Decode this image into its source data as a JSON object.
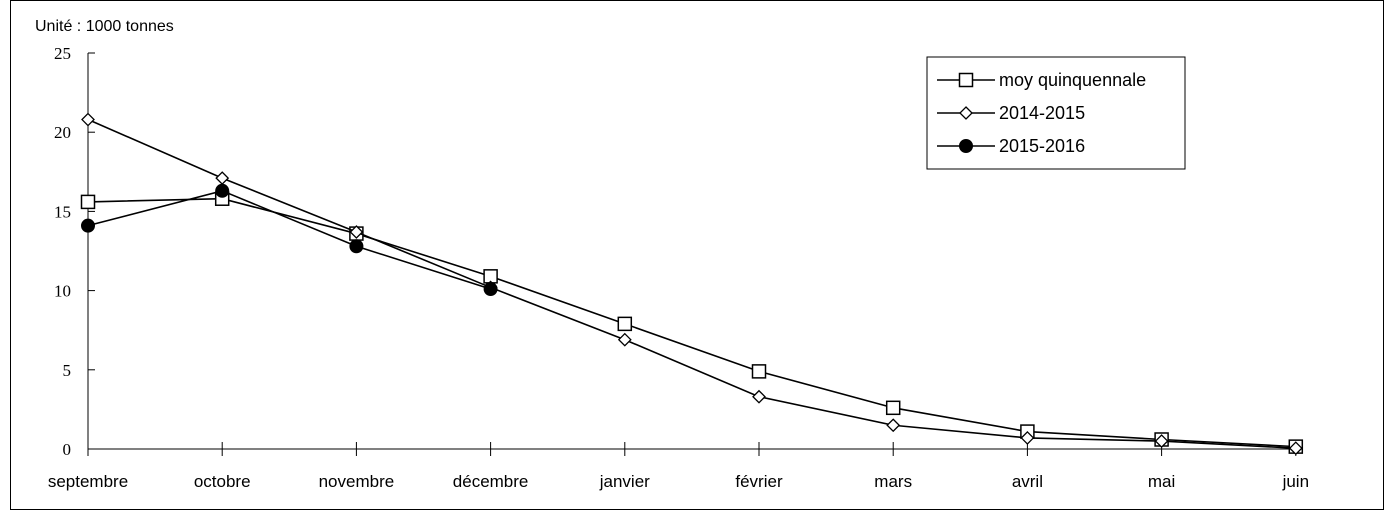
{
  "chart_data": {
    "type": "line",
    "unit_label": "Unité : 1000 tonnes",
    "categories": [
      "septembre",
      "octobre",
      "novembre",
      "décembre",
      "janvier",
      "février",
      "mars",
      "avril",
      "mai",
      "juin"
    ],
    "ylim": [
      0,
      25
    ],
    "yticks": [
      "0",
      "5",
      "10",
      "15",
      "20",
      "25"
    ],
    "grid": false,
    "legend_position": "top-right",
    "series": [
      {
        "name": "moy quinquennale",
        "marker": "square-open",
        "color": "#000000",
        "values": [
          15.6,
          15.8,
          13.6,
          10.9,
          7.9,
          4.9,
          2.6,
          1.1,
          0.6,
          0.15
        ]
      },
      {
        "name": "2014-2015",
        "marker": "diamond-open",
        "color": "#000000",
        "values": [
          20.8,
          17.1,
          13.7,
          10.2,
          6.9,
          3.3,
          1.5,
          0.7,
          0.5,
          0.05
        ]
      },
      {
        "name": "2015-2016",
        "marker": "circle-filled",
        "color": "#000000",
        "values": [
          14.1,
          16.3,
          12.8,
          10.1,
          null,
          null,
          null,
          null,
          null,
          null
        ]
      }
    ]
  }
}
